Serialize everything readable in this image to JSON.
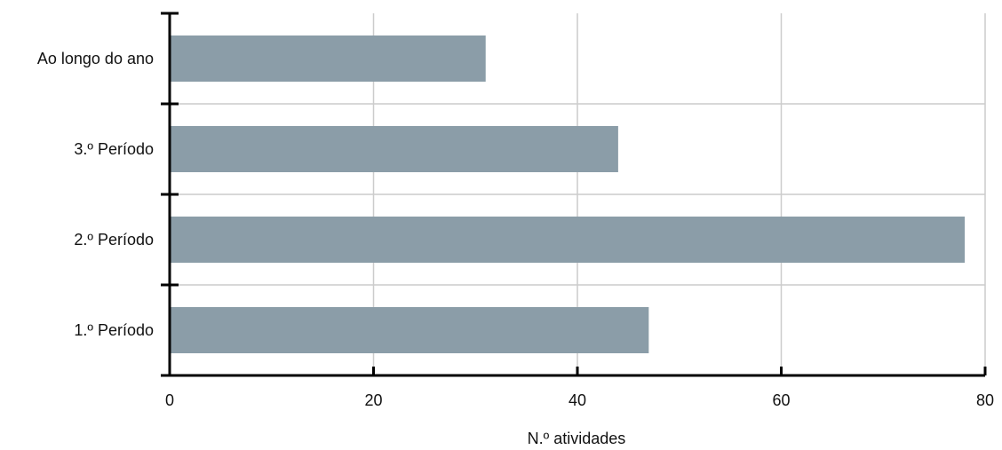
{
  "chart_data": {
    "type": "bar",
    "orientation": "horizontal",
    "categories": [
      "Ao longo do ano",
      "3.º Período",
      "2.º Período",
      "1.º Período"
    ],
    "values": [
      31,
      44,
      78,
      47
    ],
    "xlabel": "N.º atividades",
    "ylabel": "",
    "xlim": [
      0,
      80
    ],
    "xticks": [
      0,
      20,
      40,
      60,
      80
    ],
    "grid": true,
    "bar_color": "#8b9da8"
  }
}
